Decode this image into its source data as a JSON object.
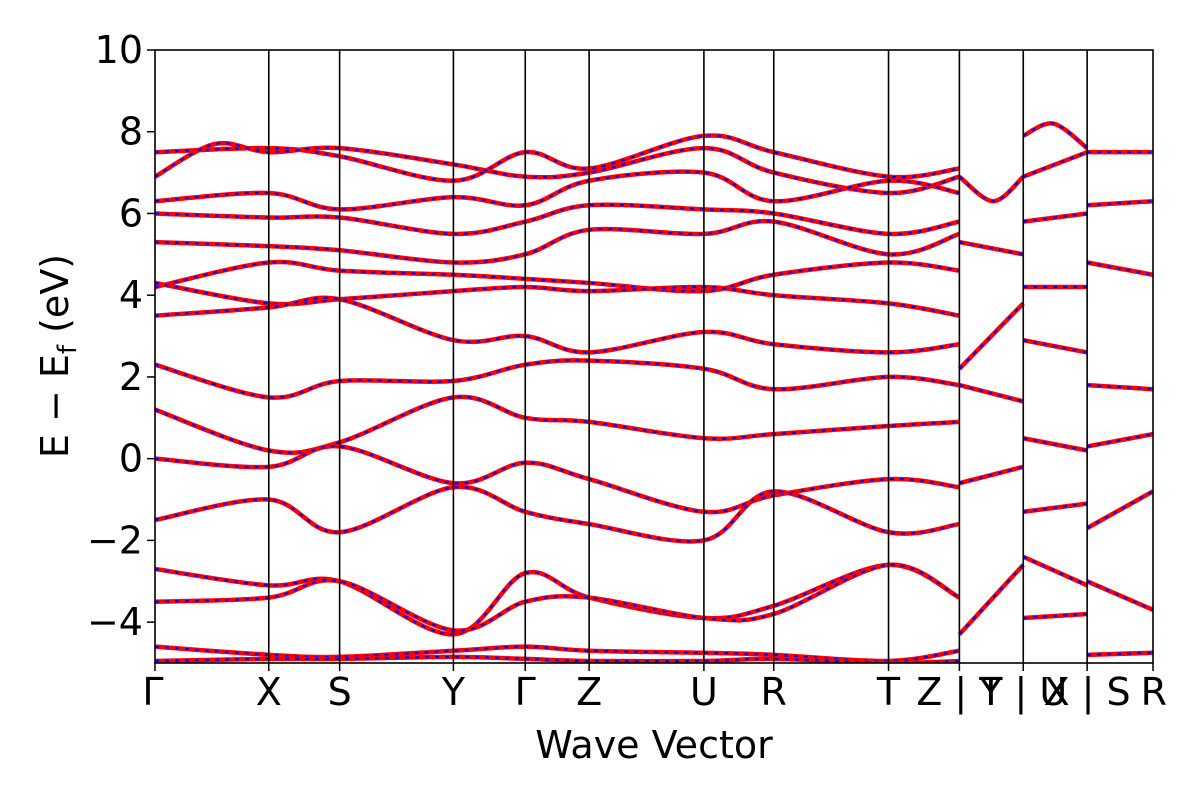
{
  "chart_data": {
    "type": "line",
    "title": "",
    "xlabel": "Wave Vector",
    "ylabel": "E − E_f (eV)",
    "ylabel_parts": {
      "main": "E − E",
      "subscript": "f",
      "unit": " (eV)"
    },
    "ylim": [
      -5,
      10
    ],
    "yticks": [
      -4,
      -2,
      0,
      2,
      4,
      6,
      8,
      10
    ],
    "ytick_labels": [
      "−4",
      "−2",
      "0",
      "2",
      "4",
      "6",
      "8",
      "10"
    ],
    "xlim": [
      0,
      1
    ],
    "grid": false,
    "kpoints": [
      {
        "label": "Γ",
        "x": 0.0
      },
      {
        "label": "X",
        "x": 0.114
      },
      {
        "label": "S",
        "x": 0.185
      },
      {
        "label": "Y",
        "x": 0.299
      },
      {
        "label": "Γ",
        "x": 0.371
      },
      {
        "label": "Z",
        "x": 0.435
      },
      {
        "label": "U",
        "x": 0.55
      },
      {
        "label": "R",
        "x": 0.62
      },
      {
        "label": "T",
        "x": 0.735
      },
      {
        "label": "Z | Y",
        "x": 0.806
      },
      {
        "label": "T | U",
        "x": 0.87
      },
      {
        "label": "X | S",
        "x": 0.934
      },
      {
        "label": "R",
        "x": 1.0
      }
    ],
    "series_style": {
      "primary_color": "#ff0000",
      "secondary_color": "#0000ff",
      "secondary_style": "dashed"
    },
    "series": [
      {
        "x": [
          0,
          0.114,
          0.185,
          0.299,
          0.371,
          0.435,
          0.55,
          0.62,
          0.735,
          0.806
        ],
        "values": [
          7.5,
          7.6,
          7.4,
          6.8,
          7.5,
          7.1,
          7.9,
          7.5,
          6.9,
          7.1
        ]
      },
      {
        "x": [
          0,
          0.06,
          0.114,
          0.185,
          0.299,
          0.371,
          0.435,
          0.55,
          0.62,
          0.735,
          0.806
        ],
        "values": [
          6.9,
          7.7,
          7.5,
          7.6,
          7.2,
          6.9,
          7.0,
          7.6,
          7.0,
          6.5,
          6.9
        ]
      },
      {
        "x": [
          0,
          0.114,
          0.185,
          0.299,
          0.371,
          0.435,
          0.55,
          0.62,
          0.735,
          0.806
        ],
        "values": [
          6.3,
          6.5,
          6.1,
          6.4,
          6.2,
          6.8,
          7.0,
          6.3,
          6.8,
          6.5
        ]
      },
      {
        "x": [
          0,
          0.114,
          0.185,
          0.299,
          0.371,
          0.435,
          0.55,
          0.62,
          0.735,
          0.806
        ],
        "values": [
          6.0,
          5.9,
          5.9,
          5.5,
          5.8,
          6.2,
          6.1,
          6.0,
          5.5,
          5.8
        ]
      },
      {
        "x": [
          0,
          0.114,
          0.185,
          0.299,
          0.371,
          0.435,
          0.55,
          0.62,
          0.735,
          0.806
        ],
        "values": [
          5.3,
          5.2,
          5.1,
          4.8,
          5.0,
          5.6,
          5.5,
          5.8,
          5.0,
          5.5
        ]
      },
      {
        "x": [
          0,
          0.114,
          0.185,
          0.299,
          0.371,
          0.435,
          0.55,
          0.62,
          0.735,
          0.806
        ],
        "values": [
          4.2,
          4.8,
          4.6,
          4.5,
          4.4,
          4.3,
          4.1,
          4.5,
          4.8,
          4.6
        ]
      },
      {
        "x": [
          0,
          0.114,
          0.185,
          0.299,
          0.371,
          0.435,
          0.55,
          0.62,
          0.735,
          0.806
        ],
        "values": [
          4.3,
          3.8,
          3.9,
          4.1,
          4.2,
          4.1,
          4.2,
          4.0,
          3.8,
          3.5
        ]
      },
      {
        "x": [
          0,
          0.114,
          0.185,
          0.299,
          0.371,
          0.435,
          0.55,
          0.62,
          0.735,
          0.806
        ],
        "values": [
          3.5,
          3.7,
          3.9,
          2.9,
          3.0,
          2.6,
          3.1,
          2.8,
          2.6,
          2.8
        ]
      },
      {
        "x": [
          0,
          0.114,
          0.185,
          0.299,
          0.371,
          0.435,
          0.55,
          0.62,
          0.735,
          0.806
        ],
        "values": [
          2.3,
          1.5,
          1.9,
          1.9,
          2.3,
          2.4,
          2.2,
          1.7,
          2.0,
          1.8
        ]
      },
      {
        "x": [
          0,
          0.114,
          0.185,
          0.299,
          0.371,
          0.435,
          0.55,
          0.62,
          0.735,
          0.806
        ],
        "values": [
          1.2,
          0.2,
          0.4,
          1.5,
          1.0,
          0.9,
          0.5,
          0.6,
          0.8,
          0.9
        ]
      },
      {
        "x": [
          0,
          0.114,
          0.185,
          0.299,
          0.371,
          0.435,
          0.55,
          0.62,
          0.735,
          0.806
        ],
        "values": [
          0.0,
          -0.2,
          0.3,
          -0.6,
          -0.1,
          -0.5,
          -1.3,
          -0.9,
          -0.5,
          -0.7
        ]
      },
      {
        "x": [
          0,
          0.114,
          0.185,
          0.299,
          0.371,
          0.435,
          0.55,
          0.62,
          0.735,
          0.806
        ],
        "values": [
          -1.5,
          -1.0,
          -1.8,
          -0.7,
          -1.3,
          -1.6,
          -2.0,
          -0.8,
          -1.8,
          -1.6
        ]
      },
      {
        "x": [
          0,
          0.114,
          0.185,
          0.299,
          0.371,
          0.435,
          0.55,
          0.62,
          0.735,
          0.806
        ],
        "values": [
          -2.7,
          -3.1,
          -3.0,
          -4.3,
          -2.8,
          -3.4,
          -3.9,
          -3.6,
          -2.6,
          -3.4
        ]
      },
      {
        "x": [
          0,
          0.114,
          0.185,
          0.299,
          0.371,
          0.435,
          0.55,
          0.62,
          0.735,
          0.806
        ],
        "values": [
          -3.5,
          -3.4,
          -3.0,
          -4.2,
          -3.5,
          -3.4,
          -3.9,
          -3.8,
          -2.6,
          -3.4
        ]
      },
      {
        "x": [
          0,
          0.114,
          0.185,
          0.299,
          0.371,
          0.435,
          0.55,
          0.62,
          0.735,
          0.806
        ],
        "values": [
          -4.6,
          -4.8,
          -4.85,
          -4.7,
          -4.6,
          -4.7,
          -4.75,
          -4.8,
          -4.95,
          -4.7
        ]
      },
      {
        "x": [
          0,
          0.114,
          0.185,
          0.299,
          0.371,
          0.435,
          0.55,
          0.62,
          0.735,
          0.806
        ],
        "values": [
          -4.95,
          -4.9,
          -4.9,
          -4.85,
          -4.9,
          -4.95,
          -4.95,
          -4.9,
          -5.0,
          -4.95
        ]
      },
      {
        "x": [
          0.806,
          0.84,
          0.87
        ],
        "values": [
          6.9,
          6.3,
          6.9
        ]
      },
      {
        "x": [
          0.806,
          0.87
        ],
        "values": [
          5.3,
          5.0
        ]
      },
      {
        "x": [
          0.806,
          0.87
        ],
        "values": [
          2.2,
          3.8
        ]
      },
      {
        "x": [
          0.806,
          0.87
        ],
        "values": [
          1.8,
          1.4
        ]
      },
      {
        "x": [
          0.806,
          0.87
        ],
        "values": [
          -0.6,
          -0.2
        ]
      },
      {
        "x": [
          0.806,
          0.87
        ],
        "values": [
          -4.3,
          -2.6
        ]
      },
      {
        "x": [
          0.87,
          0.9,
          0.934
        ],
        "values": [
          7.9,
          8.2,
          7.6
        ]
      },
      {
        "x": [
          0.87,
          0.934
        ],
        "values": [
          6.9,
          7.5
        ]
      },
      {
        "x": [
          0.87,
          0.934
        ],
        "values": [
          5.8,
          6.0
        ]
      },
      {
        "x": [
          0.87,
          0.934
        ],
        "values": [
          4.2,
          4.2
        ]
      },
      {
        "x": [
          0.87,
          0.934
        ],
        "values": [
          2.9,
          2.6
        ]
      },
      {
        "x": [
          0.87,
          0.934
        ],
        "values": [
          0.5,
          0.2
        ]
      },
      {
        "x": [
          0.87,
          0.934
        ],
        "values": [
          -1.3,
          -1.1
        ]
      },
      {
        "x": [
          0.87,
          0.934
        ],
        "values": [
          -2.4,
          -3.1
        ]
      },
      {
        "x": [
          0.87,
          0.934
        ],
        "values": [
          -3.9,
          -3.8
        ]
      },
      {
        "x": [
          0.934,
          1.0
        ],
        "values": [
          7.5,
          7.5
        ]
      },
      {
        "x": [
          0.934,
          1.0
        ],
        "values": [
          6.2,
          6.3
        ]
      },
      {
        "x": [
          0.934,
          1.0
        ],
        "values": [
          4.8,
          4.5
        ]
      },
      {
        "x": [
          0.934,
          1.0
        ],
        "values": [
          1.8,
          1.7
        ]
      },
      {
        "x": [
          0.934,
          1.0
        ],
        "values": [
          0.3,
          0.6
        ]
      },
      {
        "x": [
          0.934,
          1.0
        ],
        "values": [
          -1.7,
          -0.8
        ]
      },
      {
        "x": [
          0.934,
          1.0
        ],
        "values": [
          -3.0,
          -3.7
        ]
      },
      {
        "x": [
          0.934,
          1.0
        ],
        "values": [
          -4.8,
          -4.75
        ]
      }
    ]
  }
}
